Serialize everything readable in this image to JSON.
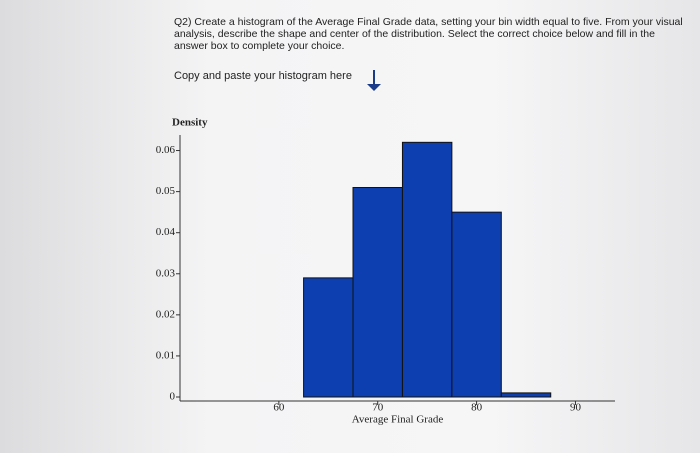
{
  "question": {
    "text": "Q2) Create a histogram of the Average Final Grade data, setting your bin width equal to five. From your visual analysis, describe the shape and center of the distribution. Select the correct choice below and fill in the answer box to complete your choice.",
    "instruction": "Copy and paste your histogram here"
  },
  "chart_data": {
    "type": "histogram",
    "y_label": "Density",
    "x_label": "Average Final Grade",
    "bins": [
      62.5,
      67.5,
      72.5,
      77.5,
      82.5,
      87.5
    ],
    "values": [
      0.029,
      0.051,
      0.062,
      0.045,
      0.001
    ],
    "color": "#0d3fb0",
    "xlim": [
      50,
      94
    ],
    "ylim": [
      0,
      0.065
    ],
    "xticks": [
      60,
      70,
      80,
      90
    ],
    "yticks": [
      0,
      0.01,
      0.02,
      0.03,
      0.04,
      0.05,
      0.06
    ]
  }
}
